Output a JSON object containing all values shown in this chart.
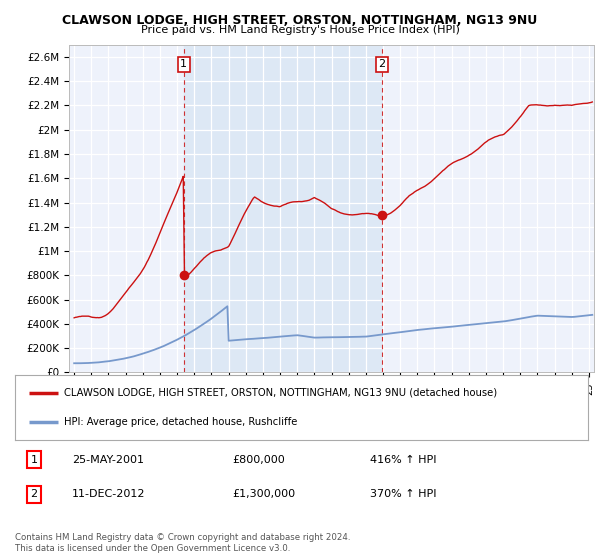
{
  "title": "CLAWSON LODGE, HIGH STREET, ORSTON, NOTTINGHAM, NG13 9NU",
  "subtitle": "Price paid vs. HM Land Registry's House Price Index (HPI)",
  "ylim": [
    0,
    2700000
  ],
  "xlim_start": 1994.7,
  "xlim_end": 2025.3,
  "yticks": [
    0,
    200000,
    400000,
    600000,
    800000,
    1000000,
    1200000,
    1400000,
    1600000,
    1800000,
    2000000,
    2200000,
    2400000,
    2600000
  ],
  "ytick_labels": [
    "£0",
    "£200K",
    "£400K",
    "£600K",
    "£800K",
    "£1M",
    "£1.2M",
    "£1.4M",
    "£1.6M",
    "£1.8M",
    "£2M",
    "£2.2M",
    "£2.4M",
    "£2.6M"
  ],
  "hpi_color": "#7799cc",
  "property_color": "#cc1111",
  "shade_color": "#dde8f5",
  "sale1_x": 2001.39,
  "sale1_y": 800000,
  "sale1_label": "1",
  "sale2_x": 2012.95,
  "sale2_y": 1300000,
  "sale2_label": "2",
  "legend_property": "CLAWSON LODGE, HIGH STREET, ORSTON, NOTTINGHAM, NG13 9NU (detached house)",
  "legend_hpi": "HPI: Average price, detached house, Rushcliffe",
  "annotation1_num": "1",
  "annotation1_date": "25-MAY-2001",
  "annotation1_price": "£800,000",
  "annotation1_hpi": "416% ↑ HPI",
  "annotation2_num": "2",
  "annotation2_date": "11-DEC-2012",
  "annotation2_price": "£1,300,000",
  "annotation2_hpi": "370% ↑ HPI",
  "footer": "Contains HM Land Registry data © Crown copyright and database right 2024.\nThis data is licensed under the Open Government Licence v3.0.",
  "background_color": "#ffffff",
  "plot_bg_color": "#eef2fb"
}
